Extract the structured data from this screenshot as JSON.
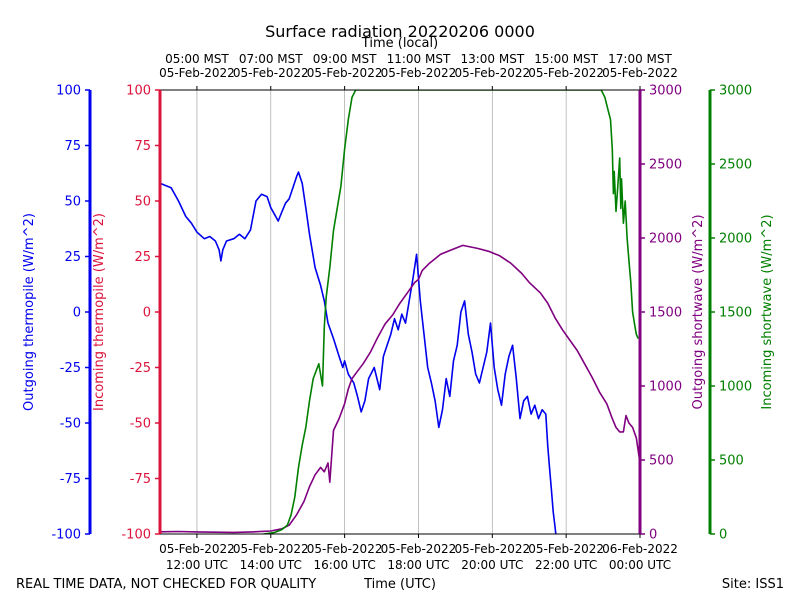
{
  "chart_data": {
    "type": "line",
    "title": "Surface radiation 20220206 0000",
    "top_axis_label": "Time (local)",
    "xlabel": "Time (UTC)",
    "footer_left": "REAL TIME DATA, NOT CHECKED FOR QUALITY",
    "footer_right": "Site: ISS1",
    "x_range_hours_utc": [
      11,
      24
    ],
    "bottom_ticks": [
      {
        "h": 12,
        "l1": "05-Feb-2022",
        "l2": "12:00 UTC"
      },
      {
        "h": 14,
        "l1": "05-Feb-2022",
        "l2": "14:00 UTC"
      },
      {
        "h": 16,
        "l1": "05-Feb-2022",
        "l2": "16:00 UTC"
      },
      {
        "h": 18,
        "l1": "05-Feb-2022",
        "l2": "18:00 UTC"
      },
      {
        "h": 20,
        "l1": "05-Feb-2022",
        "l2": "20:00 UTC"
      },
      {
        "h": 22,
        "l1": "05-Feb-2022",
        "l2": "22:00 UTC"
      },
      {
        "h": 24,
        "l1": "06-Feb-2022",
        "l2": "00:00 UTC"
      }
    ],
    "top_ticks": [
      {
        "h": 12,
        "l1": "05:00 MST",
        "l2": "05-Feb-2022"
      },
      {
        "h": 14,
        "l1": "07:00 MST",
        "l2": "05-Feb-2022"
      },
      {
        "h": 16,
        "l1": "09:00 MST",
        "l2": "05-Feb-2022"
      },
      {
        "h": 18,
        "l1": "11:00 MST",
        "l2": "05-Feb-2022"
      },
      {
        "h": 20,
        "l1": "13:00 MST",
        "l2": "05-Feb-2022"
      },
      {
        "h": 22,
        "l1": "15:00 MST",
        "l2": "05-Feb-2022"
      },
      {
        "h": 24,
        "l1": "17:00 MST",
        "l2": "05-Feb-2022"
      }
    ],
    "axes": [
      {
        "name": "outgoing-thermopile",
        "label": "Outgoing thermopile (W/m^2)",
        "color": "#0000ee",
        "range": [
          -100,
          100
        ],
        "ticks": [
          -100,
          -75,
          -50,
          -25,
          0,
          25,
          50,
          75,
          100
        ]
      },
      {
        "name": "incoming-thermopile",
        "label": "Incoming thermopile (W/m^2)",
        "color": "#dc143c",
        "range": [
          -100,
          100
        ],
        "ticks": [
          -100,
          -75,
          -50,
          -25,
          0,
          25,
          50,
          75,
          100
        ]
      },
      {
        "name": "outgoing-shortwave",
        "label": "Outgoing shortwave (W/m^2)",
        "color": "#800080",
        "range": [
          0,
          3000
        ],
        "ticks": [
          0,
          500,
          1000,
          1500,
          2000,
          2500,
          3000
        ]
      },
      {
        "name": "incoming-shortwave",
        "label": "Incoming shortwave (W/m^2)",
        "color": "#008000",
        "range": [
          0,
          3000
        ],
        "ticks": [
          0,
          500,
          1000,
          1500,
          2000,
          2500,
          3000
        ]
      }
    ],
    "series": [
      {
        "name": "Outgoing thermopile",
        "axis": 0,
        "color": "#0000ee",
        "points": [
          [
            11.0,
            58
          ],
          [
            11.15,
            57
          ],
          [
            11.3,
            56
          ],
          [
            11.5,
            50
          ],
          [
            11.7,
            43
          ],
          [
            11.85,
            40
          ],
          [
            12.0,
            36
          ],
          [
            12.2,
            33
          ],
          [
            12.35,
            34
          ],
          [
            12.5,
            32
          ],
          [
            12.6,
            28
          ],
          [
            12.65,
            23
          ],
          [
            12.7,
            28
          ],
          [
            12.8,
            32
          ],
          [
            13.0,
            33
          ],
          [
            13.15,
            35
          ],
          [
            13.3,
            33
          ],
          [
            13.45,
            37
          ],
          [
            13.6,
            50
          ],
          [
            13.75,
            53
          ],
          [
            13.9,
            52
          ],
          [
            14.0,
            47
          ],
          [
            14.1,
            44
          ],
          [
            14.2,
            41
          ],
          [
            14.3,
            45
          ],
          [
            14.4,
            49
          ],
          [
            14.5,
            51
          ],
          [
            14.6,
            56
          ],
          [
            14.7,
            61
          ],
          [
            14.75,
            63
          ],
          [
            14.85,
            58
          ],
          [
            14.95,
            47
          ],
          [
            15.05,
            35
          ],
          [
            15.2,
            20
          ],
          [
            15.35,
            12
          ],
          [
            15.45,
            5
          ],
          [
            15.55,
            -5
          ],
          [
            15.7,
            -12
          ],
          [
            15.85,
            -20
          ],
          [
            15.95,
            -25
          ],
          [
            16.0,
            -22
          ],
          [
            16.1,
            -28
          ],
          [
            16.25,
            -32
          ],
          [
            16.35,
            -38
          ],
          [
            16.45,
            -45
          ],
          [
            16.55,
            -40
          ],
          [
            16.65,
            -30
          ],
          [
            16.8,
            -25
          ],
          [
            16.95,
            -35
          ],
          [
            17.05,
            -20
          ],
          [
            17.15,
            -15
          ],
          [
            17.25,
            -10
          ],
          [
            17.35,
            -3
          ],
          [
            17.45,
            -8
          ],
          [
            17.55,
            -1
          ],
          [
            17.65,
            -5
          ],
          [
            17.75,
            5
          ],
          [
            17.85,
            15
          ],
          [
            17.95,
            26
          ],
          [
            18.05,
            5
          ],
          [
            18.15,
            -10
          ],
          [
            18.25,
            -25
          ],
          [
            18.35,
            -32
          ],
          [
            18.45,
            -40
          ],
          [
            18.55,
            -52
          ],
          [
            18.65,
            -44
          ],
          [
            18.75,
            -30
          ],
          [
            18.85,
            -38
          ],
          [
            18.95,
            -22
          ],
          [
            19.05,
            -15
          ],
          [
            19.15,
            0
          ],
          [
            19.25,
            5
          ],
          [
            19.35,
            -10
          ],
          [
            19.45,
            -18
          ],
          [
            19.55,
            -28
          ],
          [
            19.65,
            -32
          ],
          [
            19.75,
            -25
          ],
          [
            19.85,
            -18
          ],
          [
            19.95,
            -5
          ],
          [
            20.05,
            -25
          ],
          [
            20.15,
            -35
          ],
          [
            20.25,
            -42
          ],
          [
            20.35,
            -28
          ],
          [
            20.45,
            -20
          ],
          [
            20.55,
            -15
          ],
          [
            20.65,
            -30
          ],
          [
            20.75,
            -48
          ],
          [
            20.85,
            -40
          ],
          [
            20.95,
            -38
          ],
          [
            21.05,
            -46
          ],
          [
            21.15,
            -42
          ],
          [
            21.25,
            -48
          ],
          [
            21.35,
            -44
          ],
          [
            21.45,
            -46
          ],
          [
            21.5,
            -60
          ],
          [
            21.55,
            -70
          ],
          [
            21.6,
            -80
          ],
          [
            21.65,
            -90
          ],
          [
            21.7,
            -97
          ],
          [
            21.72,
            -100
          ]
        ]
      },
      {
        "name": "Outgoing shortwave",
        "axis": 2,
        "color": "#800080",
        "points": [
          [
            11.0,
            15
          ],
          [
            11.5,
            17
          ],
          [
            12.0,
            14
          ],
          [
            12.5,
            12
          ],
          [
            13.0,
            11
          ],
          [
            13.5,
            14
          ],
          [
            14.0,
            20
          ],
          [
            14.3,
            35
          ],
          [
            14.5,
            60
          ],
          [
            14.7,
            130
          ],
          [
            14.9,
            220
          ],
          [
            15.05,
            320
          ],
          [
            15.2,
            400
          ],
          [
            15.35,
            450
          ],
          [
            15.45,
            420
          ],
          [
            15.55,
            480
          ],
          [
            15.6,
            350
          ],
          [
            15.7,
            700
          ],
          [
            15.85,
            780
          ],
          [
            16.0,
            880
          ],
          [
            16.1,
            980
          ],
          [
            16.2,
            1050
          ],
          [
            16.35,
            1100
          ],
          [
            16.5,
            1150
          ],
          [
            16.7,
            1230
          ],
          [
            16.9,
            1330
          ],
          [
            17.1,
            1420
          ],
          [
            17.3,
            1480
          ],
          [
            17.5,
            1560
          ],
          [
            17.7,
            1630
          ],
          [
            17.9,
            1700
          ],
          [
            18.0,
            1720
          ],
          [
            18.1,
            1780
          ],
          [
            18.3,
            1830
          ],
          [
            18.6,
            1890
          ],
          [
            18.9,
            1920
          ],
          [
            19.2,
            1950
          ],
          [
            19.6,
            1930
          ],
          [
            19.9,
            1910
          ],
          [
            20.2,
            1880
          ],
          [
            20.5,
            1830
          ],
          [
            20.8,
            1760
          ],
          [
            21.0,
            1700
          ],
          [
            21.3,
            1630
          ],
          [
            21.5,
            1560
          ],
          [
            21.7,
            1460
          ],
          [
            21.9,
            1380
          ],
          [
            22.1,
            1310
          ],
          [
            22.3,
            1240
          ],
          [
            22.5,
            1150
          ],
          [
            22.7,
            1060
          ],
          [
            22.9,
            960
          ],
          [
            23.1,
            880
          ],
          [
            23.25,
            780
          ],
          [
            23.35,
            720
          ],
          [
            23.45,
            690
          ],
          [
            23.55,
            690
          ],
          [
            23.62,
            800
          ],
          [
            23.7,
            750
          ],
          [
            23.8,
            720
          ],
          [
            23.9,
            650
          ],
          [
            24.0,
            480
          ]
        ]
      },
      {
        "name": "Incoming shortwave",
        "axis": 3,
        "color": "#008000",
        "points": [
          [
            13.8,
            0
          ],
          [
            14.1,
            10
          ],
          [
            14.3,
            30
          ],
          [
            14.45,
            60
          ],
          [
            14.55,
            130
          ],
          [
            14.65,
            250
          ],
          [
            14.75,
            450
          ],
          [
            14.85,
            600
          ],
          [
            14.95,
            720
          ],
          [
            15.05,
            900
          ],
          [
            15.15,
            1050
          ],
          [
            15.3,
            1150
          ],
          [
            15.4,
            1000
          ],
          [
            15.45,
            1400
          ],
          [
            15.5,
            1600
          ],
          [
            15.6,
            1800
          ],
          [
            15.7,
            2050
          ],
          [
            15.8,
            2200
          ],
          [
            15.9,
            2350
          ],
          [
            16.0,
            2600
          ],
          [
            16.1,
            2800
          ],
          [
            16.2,
            2950
          ],
          [
            16.3,
            3000
          ],
          [
            22.95,
            3000
          ],
          [
            23.05,
            2950
          ],
          [
            23.15,
            2850
          ],
          [
            23.2,
            2800
          ],
          [
            23.25,
            2600
          ],
          [
            23.28,
            2300
          ],
          [
            23.3,
            2450
          ],
          [
            23.35,
            2180
          ],
          [
            23.4,
            2350
          ],
          [
            23.45,
            2540
          ],
          [
            23.48,
            2200
          ],
          [
            23.5,
            2400
          ],
          [
            23.55,
            2100
          ],
          [
            23.6,
            2250
          ],
          [
            23.65,
            2000
          ],
          [
            23.7,
            1850
          ],
          [
            23.75,
            1700
          ],
          [
            23.8,
            1500
          ],
          [
            23.85,
            1420
          ],
          [
            23.9,
            1350
          ],
          [
            23.95,
            1320
          ]
        ]
      }
    ]
  }
}
